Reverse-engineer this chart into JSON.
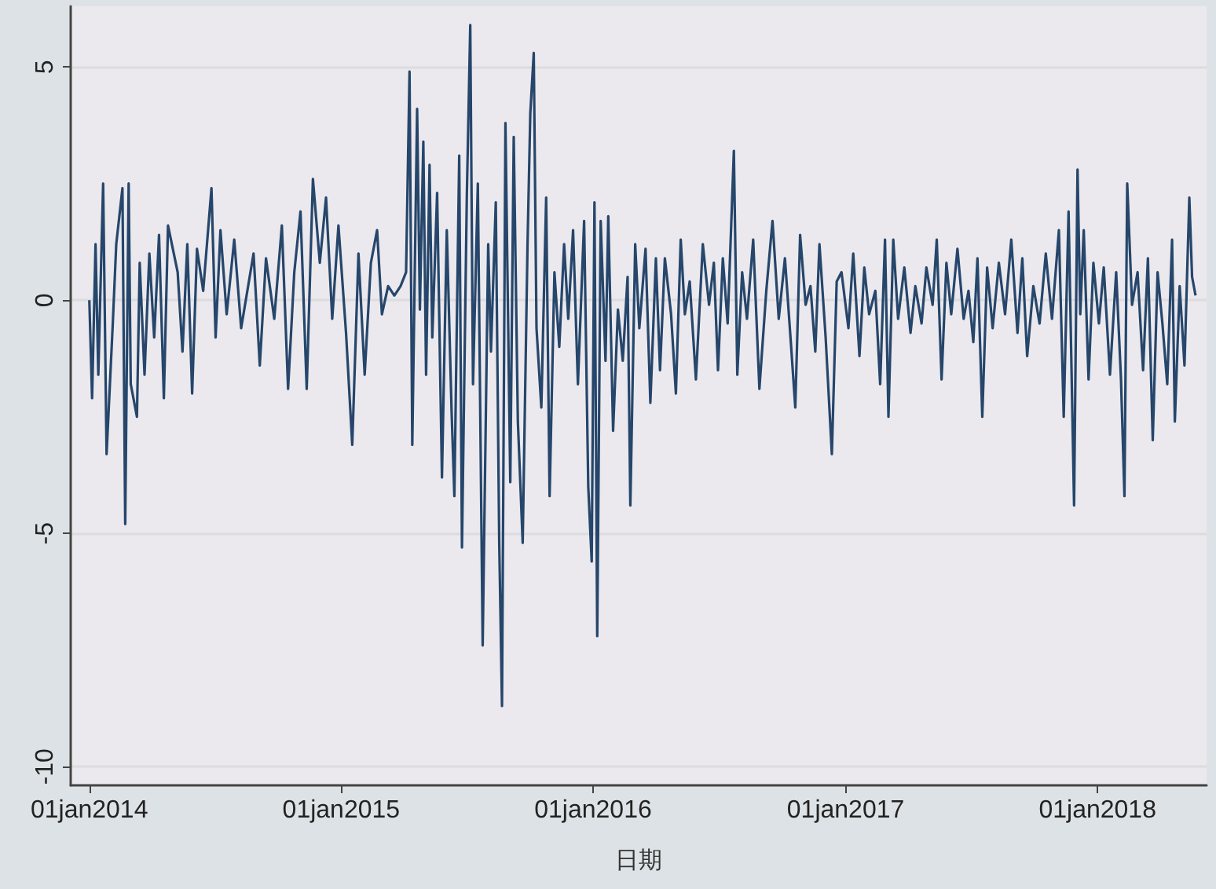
{
  "chart_data": {
    "type": "line",
    "xlabel": "日期",
    "color": "#26466b",
    "line_style": "solid",
    "marker": "none",
    "grid": "y",
    "xlim": [
      "2013-12-05",
      "2018-06-08"
    ],
    "xticks": [
      {
        "value": "2014-01-01",
        "label": "01jan2014"
      },
      {
        "value": "2015-01-01",
        "label": "01jan2015"
      },
      {
        "value": "2016-01-01",
        "label": "01jan2016"
      },
      {
        "value": "2017-01-01",
        "label": "01jan2017"
      },
      {
        "value": "2018-01-01",
        "label": "01jan2018"
      }
    ],
    "ylim": [
      -10.4,
      6.3
    ],
    "yticks": [
      -10,
      -5,
      0,
      5
    ],
    "x": [
      "2014-01-01",
      "2014-01-05",
      "2014-01-10",
      "2014-01-14",
      "2014-01-21",
      "2014-01-26",
      "2014-02-04",
      "2014-02-09",
      "2014-02-18",
      "2014-02-22",
      "2014-02-27",
      "2014-03-02",
      "2014-03-11",
      "2014-03-15",
      "2014-03-22",
      "2014-03-29",
      "2014-04-05",
      "2014-04-12",
      "2014-04-19",
      "2014-04-25",
      "2014-05-09",
      "2014-05-16",
      "2014-05-23",
      "2014-05-30",
      "2014-06-06",
      "2014-06-15",
      "2014-06-27",
      "2014-07-03",
      "2014-07-10",
      "2014-07-19",
      "2014-07-30",
      "2014-08-09",
      "2014-08-18",
      "2014-08-27",
      "2014-09-05",
      "2014-09-14",
      "2014-09-26",
      "2014-10-07",
      "2014-10-16",
      "2014-10-25",
      "2014-11-03",
      "2014-11-12",
      "2014-11-21",
      "2014-12-01",
      "2014-12-10",
      "2014-12-19",
      "2014-12-28",
      "2015-01-08",
      "2015-01-17",
      "2015-01-26",
      "2015-02-04",
      "2015-02-13",
      "2015-02-22",
      "2015-03-01",
      "2015-03-10",
      "2015-03-19",
      "2015-03-28",
      "2015-04-05",
      "2015-04-10",
      "2015-04-14",
      "2015-04-21",
      "2015-04-25",
      "2015-04-30",
      "2015-05-04",
      "2015-05-09",
      "2015-05-13",
      "2015-05-20",
      "2015-05-27",
      "2015-06-03",
      "2015-06-10",
      "2015-06-14",
      "2015-06-21",
      "2015-06-25",
      "2015-07-02",
      "2015-07-07",
      "2015-07-11",
      "2015-07-18",
      "2015-07-25",
      "2015-08-02",
      "2015-08-06",
      "2015-08-13",
      "2015-08-18",
      "2015-08-22",
      "2015-08-27",
      "2015-09-03",
      "2015-09-08",
      "2015-09-14",
      "2015-09-21",
      "2015-09-28",
      "2015-10-02",
      "2015-10-07",
      "2015-10-11",
      "2015-10-18",
      "2015-10-25",
      "2015-10-30",
      "2015-11-06",
      "2015-11-13",
      "2015-11-20",
      "2015-11-26",
      "2015-12-03",
      "2015-12-10",
      "2015-12-19",
      "2015-12-25",
      "2015-12-30",
      "2016-01-03",
      "2016-01-07",
      "2016-01-12",
      "2016-01-19",
      "2016-01-23",
      "2016-01-30",
      "2016-02-06",
      "2016-02-13",
      "2016-02-20",
      "2016-02-24",
      "2016-03-02",
      "2016-03-08",
      "2016-03-17",
      "2016-03-24",
      "2016-04-01",
      "2016-04-07",
      "2016-04-14",
      "2016-04-23",
      "2016-04-30",
      "2016-05-07",
      "2016-05-13",
      "2016-05-20",
      "2016-05-29",
      "2016-06-08",
      "2016-06-17",
      "2016-06-24",
      "2016-06-30",
      "2016-07-07",
      "2016-07-14",
      "2016-07-23",
      "2016-07-28",
      "2016-08-04",
      "2016-08-11",
      "2016-08-20",
      "2016-08-29",
      "2016-09-08",
      "2016-09-17",
      "2016-09-26",
      "2016-10-05",
      "2016-10-14",
      "2016-10-20",
      "2016-10-27",
      "2016-11-04",
      "2016-11-11",
      "2016-11-18",
      "2016-11-24",
      "2016-12-03",
      "2016-12-12",
      "2016-12-19",
      "2016-12-26",
      "2017-01-05",
      "2017-01-12",
      "2017-01-21",
      "2017-01-28",
      "2017-02-04",
      "2017-02-13",
      "2017-02-20",
      "2017-02-27",
      "2017-03-04",
      "2017-03-11",
      "2017-03-18",
      "2017-03-27",
      "2017-04-05",
      "2017-04-12",
      "2017-04-21",
      "2017-04-28",
      "2017-05-07",
      "2017-05-13",
      "2017-05-20",
      "2017-05-27",
      "2017-06-03",
      "2017-06-12",
      "2017-06-21",
      "2017-06-28",
      "2017-07-05",
      "2017-07-11",
      "2017-07-18",
      "2017-07-25",
      "2017-08-02",
      "2017-08-11",
      "2017-08-20",
      "2017-08-29",
      "2017-09-07",
      "2017-09-14",
      "2017-09-21",
      "2017-09-30",
      "2017-10-09",
      "2017-10-18",
      "2017-10-27",
      "2017-11-06",
      "2017-11-13",
      "2017-11-20",
      "2017-11-28",
      "2017-12-03",
      "2017-12-07",
      "2017-12-12",
      "2017-12-19",
      "2017-12-26",
      "2018-01-03",
      "2018-01-10",
      "2018-01-19",
      "2018-01-28",
      "2018-02-04",
      "2018-02-09",
      "2018-02-13",
      "2018-02-20",
      "2018-02-28",
      "2018-03-08",
      "2018-03-15",
      "2018-03-22",
      "2018-03-29",
      "2018-04-05",
      "2018-04-12",
      "2018-04-19",
      "2018-04-23",
      "2018-04-30",
      "2018-05-07",
      "2018-05-14",
      "2018-05-18",
      "2018-05-23"
    ],
    "values": [
      0,
      -2.1,
      1.2,
      -1.6,
      2.5,
      -3.3,
      -0.5,
      1.2,
      2.4,
      -4.8,
      2.5,
      -1.8,
      -2.5,
      0.8,
      -1.6,
      1.0,
      -0.8,
      1.4,
      -2.1,
      1.6,
      0.6,
      -1.1,
      1.2,
      -2.0,
      1.1,
      0.2,
      2.4,
      -0.8,
      1.5,
      -0.3,
      1.3,
      -0.6,
      0.2,
      1.0,
      -1.4,
      0.9,
      -0.4,
      1.6,
      -1.9,
      0.6,
      1.9,
      -1.9,
      2.6,
      0.8,
      2.2,
      -0.4,
      1.6,
      -0.7,
      -3.1,
      1.0,
      -1.6,
      0.8,
      1.5,
      -0.3,
      0.3,
      0.1,
      0.3,
      0.6,
      4.9,
      -3.1,
      4.1,
      -0.2,
      3.4,
      -1.6,
      2.9,
      -0.8,
      2.3,
      -3.8,
      1.5,
      -2.4,
      -4.2,
      3.1,
      -5.3,
      2.2,
      5.9,
      -1.8,
      2.5,
      -7.4,
      1.2,
      -1.1,
      2.1,
      -5.2,
      -8.7,
      3.8,
      -3.9,
      3.5,
      -2.6,
      -5.2,
      1.2,
      4.0,
      5.3,
      -0.6,
      -2.3,
      2.2,
      -4.2,
      0.6,
      -1.0,
      1.2,
      -0.4,
      1.5,
      -1.8,
      1.7,
      -4.0,
      -5.6,
      2.1,
      -7.2,
      1.7,
      -1.3,
      1.8,
      -2.8,
      -0.2,
      -1.3,
      0.5,
      -4.4,
      1.2,
      -0.6,
      1.1,
      -2.2,
      0.9,
      -1.5,
      0.9,
      -0.3,
      -2.0,
      1.3,
      -0.3,
      0.4,
      -1.7,
      1.2,
      -0.1,
      0.8,
      -1.5,
      0.9,
      -0.5,
      3.2,
      -1.6,
      0.6,
      -0.4,
      1.3,
      -1.9,
      0.2,
      1.7,
      -0.4,
      0.9,
      -1.0,
      -2.3,
      1.4,
      -0.1,
      0.3,
      -1.1,
      1.2,
      -0.8,
      -3.3,
      0.4,
      0.6,
      -0.6,
      1.0,
      -1.2,
      0.7,
      -0.3,
      0.2,
      -1.8,
      1.3,
      -2.5,
      1.3,
      -0.4,
      0.7,
      -0.7,
      0.3,
      -0.5,
      0.7,
      -0.1,
      1.3,
      -1.7,
      0.8,
      -0.3,
      1.1,
      -0.4,
      0.2,
      -0.9,
      0.9,
      -2.5,
      0.7,
      -0.6,
      0.8,
      -0.3,
      1.3,
      -0.7,
      0.9,
      -1.2,
      0.3,
      -0.5,
      1.0,
      -0.4,
      1.5,
      -2.5,
      1.9,
      -4.4,
      2.8,
      -0.3,
      1.5,
      -1.7,
      0.8,
      -0.5,
      0.7,
      -1.6,
      0.6,
      -1.7,
      -4.2,
      2.5,
      -0.1,
      0.6,
      -1.5,
      0.9,
      -3.0,
      0.6,
      -0.5,
      -1.8,
      1.3,
      -2.6,
      0.3,
      -1.4,
      2.2,
      0.5,
      0.1
    ]
  }
}
